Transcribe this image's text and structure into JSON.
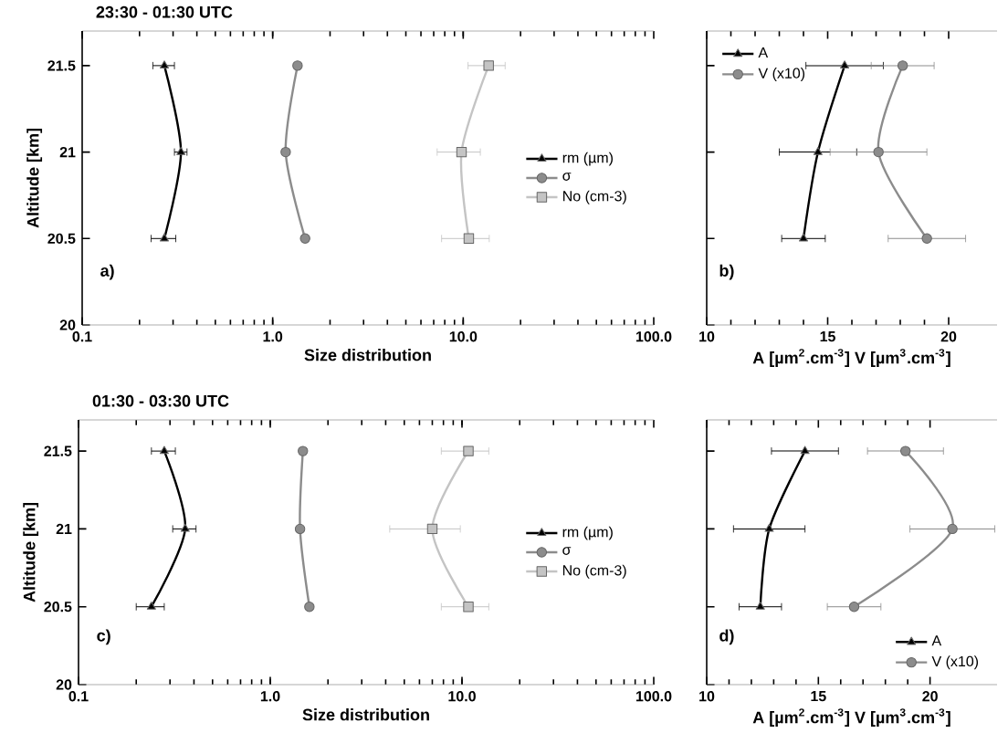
{
  "chart_data": [
    {
      "type": "line",
      "title": "23:30 - 01:30 UTC",
      "xlabel": "Size distribution",
      "ylabel": "Altitude [km]",
      "log": "x",
      "xlim": [
        0.1,
        100
      ],
      "xticks": [
        0.1,
        {
          "value": 1,
          "label": "1.0"
        },
        {
          "value": 10,
          "label": "10.0"
        },
        {
          "value": 100,
          "label": "100.0"
        }
      ],
      "ylim": [
        20,
        21.7
      ],
      "yticks": [
        20,
        20.5,
        21,
        21.5
      ],
      "legend": "right",
      "annotations": [
        "a)"
      ],
      "series": [
        {
          "name": "rm (µm)",
          "color": "#000000",
          "marker": "triangle",
          "x": [
            0.27,
            0.33,
            0.27
          ],
          "values": [
            21.5,
            21,
            20.5
          ],
          "xerrors": [
            0.035,
            0.025,
            0.04
          ]
        },
        {
          "name": "σ",
          "color": "#8c8c8c",
          "marker": "circle",
          "x": [
            1.35,
            1.17,
            1.48
          ],
          "values": [
            21.5,
            21,
            20.5
          ]
        },
        {
          "name": "No (cm-3)",
          "color": "#c4c4c4",
          "marker": "square",
          "x": [
            13.6,
            9.8,
            10.7
          ],
          "values": [
            21.5,
            21,
            20.5
          ],
          "xerrors": [
            3,
            2.5,
            3
          ]
        }
      ]
    },
    {
      "type": "line",
      "xlabel": "A [µm$^{2}$.cm$^{-3}$]   V [µm$^{3}$.cm$^{-3}$]",
      "xlim": [
        10,
        22
      ],
      "xticks": [
        10,
        15,
        20
      ],
      "ylim": [
        20,
        21.7
      ],
      "yticks": [
        20,
        20.5,
        21,
        21.5
      ],
      "tick_labels": "x",
      "legend": "top left",
      "annotations": [
        "b)"
      ],
      "series": [
        {
          "name": "A",
          "color": "#000000",
          "marker": "triangle",
          "x": [
            15.7,
            14.6,
            14.0
          ],
          "values": [
            21.5,
            21,
            20.5
          ],
          "xerrors": [
            1.6,
            1.6,
            0.9
          ]
        },
        {
          "name": "V (x10)",
          "color": "#8c8c8c",
          "marker": "circle",
          "x": [
            18.1,
            17.1,
            19.1
          ],
          "values": [
            21.5,
            21,
            20.5
          ],
          "xerrors": [
            1.3,
            2,
            1.6
          ]
        }
      ]
    },
    {
      "type": "line",
      "title": "01:30 - 03:30 UTC",
      "xlabel": "Size distribution",
      "ylabel": "Altitude [km]",
      "log": "x",
      "xlim": [
        0.1,
        100
      ],
      "xticks": [
        0.1,
        {
          "value": 1,
          "label": "1.0"
        },
        {
          "value": 10,
          "label": "10.0"
        },
        {
          "value": 100,
          "label": "100.0"
        }
      ],
      "ylim": [
        20,
        21.7
      ],
      "yticks": [
        20,
        20.5,
        21,
        21.5
      ],
      "legend": "right",
      "annotations": [
        "c)"
      ],
      "series": [
        {
          "name": "rm (µm)",
          "color": "#000000",
          "marker": "triangle",
          "x": [
            0.28,
            0.36,
            0.24
          ],
          "values": [
            21.5,
            21,
            20.5
          ],
          "xerrors": [
            0.04,
            0.05,
            0.04
          ]
        },
        {
          "name": "σ",
          "color": "#8c8c8c",
          "marker": "circle",
          "x": [
            1.48,
            1.43,
            1.6
          ],
          "values": [
            21.5,
            21,
            20.5
          ]
        },
        {
          "name": "No (cm-3)",
          "color": "#c4c4c4",
          "marker": "square",
          "x": [
            10.8,
            7.0,
            10.8
          ],
          "values": [
            21.5,
            21,
            20.5
          ],
          "xerrors": [
            3,
            2.8,
            3
          ]
        }
      ]
    },
    {
      "type": "line",
      "xlabel": "A [µm$^{2}$.cm$^{-3}$]   V [µm$^{3}$.cm$^{-3}$]",
      "xlim": [
        10,
        23
      ],
      "xticks": [
        10,
        15,
        20
      ],
      "ylim": [
        20,
        21.7
      ],
      "yticks": [
        20,
        20.5,
        21,
        21.5
      ],
      "tick_labels": "x",
      "legend": "bottom right",
      "annotations": [
        "d)"
      ],
      "series": [
        {
          "name": "A",
          "color": "#000000",
          "marker": "triangle",
          "x": [
            14.4,
            12.8,
            12.4
          ],
          "values": [
            21.5,
            21,
            20.5
          ],
          "xerrors": [
            1.5,
            1.6,
            0.95
          ]
        },
        {
          "name": "V (x10)",
          "color": "#8c8c8c",
          "marker": "circle",
          "x": [
            18.9,
            21.0,
            16.6
          ],
          "values": [
            21.5,
            21,
            20.5
          ],
          "xerrors": [
            1.7,
            1.9,
            1.2
          ]
        }
      ]
    }
  ]
}
